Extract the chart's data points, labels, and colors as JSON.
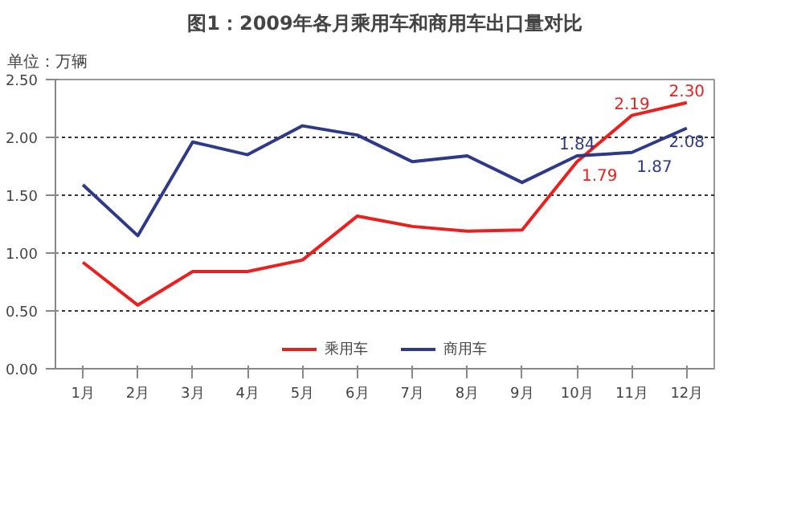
{
  "chart_data": {
    "type": "line",
    "title": "图1：2009年各月乘用车和商用车出口量对比",
    "annotations": [
      "单位：万辆"
    ],
    "categories": [
      "1月",
      "2月",
      "3月",
      "4月",
      "5月",
      "6月",
      "7月",
      "8月",
      "9月",
      "10月",
      "11月",
      "12月"
    ],
    "series": [
      {
        "name": "乘用车",
        "color": "#e8201f",
        "values": [
          0.92,
          0.55,
          0.84,
          0.84,
          0.94,
          1.32,
          1.23,
          1.19,
          1.2,
          1.79,
          2.19,
          2.3
        ],
        "value_labels": [
          null,
          null,
          null,
          null,
          null,
          null,
          null,
          null,
          null,
          "1.79",
          "2.19",
          "2.30"
        ]
      },
      {
        "name": "商用车",
        "color": "#2e3a87",
        "values": [
          1.59,
          1.15,
          1.96,
          1.85,
          2.1,
          2.02,
          1.79,
          1.84,
          1.61,
          1.84,
          1.87,
          2.08
        ],
        "value_labels": [
          null,
          null,
          null,
          null,
          null,
          null,
          null,
          null,
          null,
          "1.84",
          "1.87",
          "2.08"
        ]
      }
    ],
    "ylim": [
      0,
      2.5
    ],
    "yticks": [
      {
        "value": 0,
        "label": "0.00"
      },
      {
        "value": 0.5,
        "label": "0.50"
      },
      {
        "value": 1,
        "label": "1.00"
      },
      {
        "value": 1.5,
        "label": "1.50"
      },
      {
        "value": 2,
        "label": "2.00"
      },
      {
        "value": 2.5,
        "label": "2.50"
      }
    ],
    "grid": "y",
    "legend": "bottom",
    "line_style": "solid"
  }
}
